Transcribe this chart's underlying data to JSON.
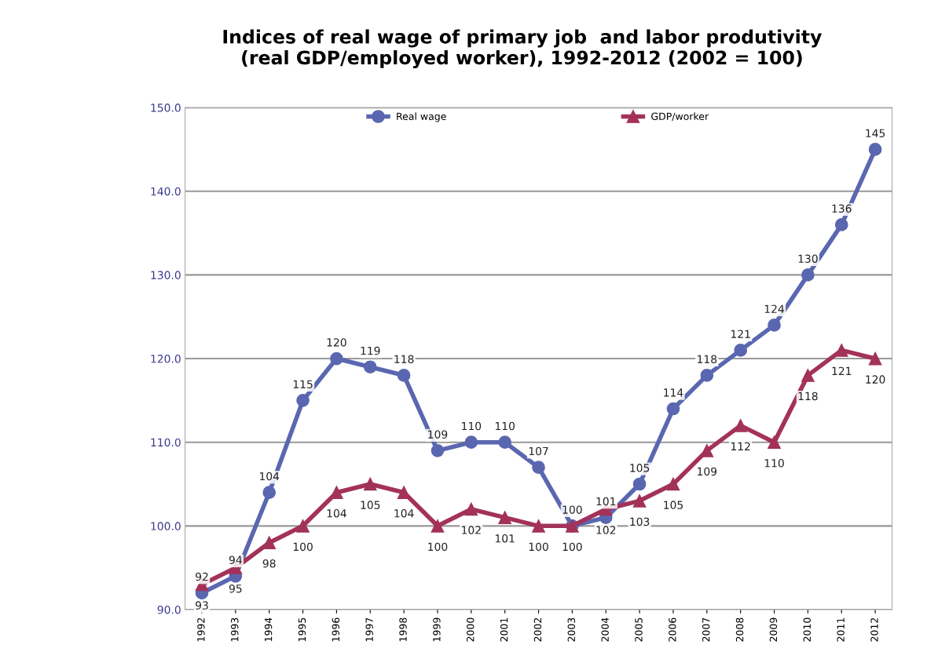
{
  "chart_data": {
    "type": "line",
    "title": "Indices of real wage of primary job  and labor produtivity\n(real GDP/employed worker), 1992-2012 (2002 = 100)",
    "categories": [
      "1992",
      "1993",
      "1994",
      "1995",
      "1996",
      "1997",
      "1998",
      "1999",
      "2000",
      "2001",
      "2002",
      "2003",
      "2004",
      "2005",
      "2006",
      "2007",
      "2008",
      "2009",
      "2010",
      "2011",
      "2012"
    ],
    "series": [
      {
        "name": "Real wage",
        "color": "#5a67b0",
        "marker": "circle",
        "values": [
          92,
          94,
          104,
          115,
          120,
          119,
          118,
          109,
          110,
          110,
          107,
          100,
          101,
          105,
          114,
          118,
          121,
          124,
          130,
          136,
          145
        ]
      },
      {
        "name": "GDP/worker",
        "color": "#a3325a",
        "marker": "triangle",
        "values": [
          93,
          95,
          98,
          100,
          104,
          105,
          104,
          100,
          102,
          101,
          100,
          100,
          102,
          103,
          105,
          109,
          112,
          110,
          118,
          121,
          120
        ]
      }
    ],
    "ylim": [
      90,
      150
    ],
    "yticks": [
      {
        "value": 90,
        "label": "90.0"
      },
      {
        "value": 100,
        "label": "100.0"
      },
      {
        "value": 110,
        "label": "110.0"
      },
      {
        "value": 120,
        "label": "120.0"
      },
      {
        "value": 130,
        "label": "130.0"
      },
      {
        "value": 140,
        "label": "140.0"
      },
      {
        "value": 150,
        "label": "150.0"
      }
    ],
    "grid": "y",
    "legend": "top",
    "data_labels": true
  }
}
